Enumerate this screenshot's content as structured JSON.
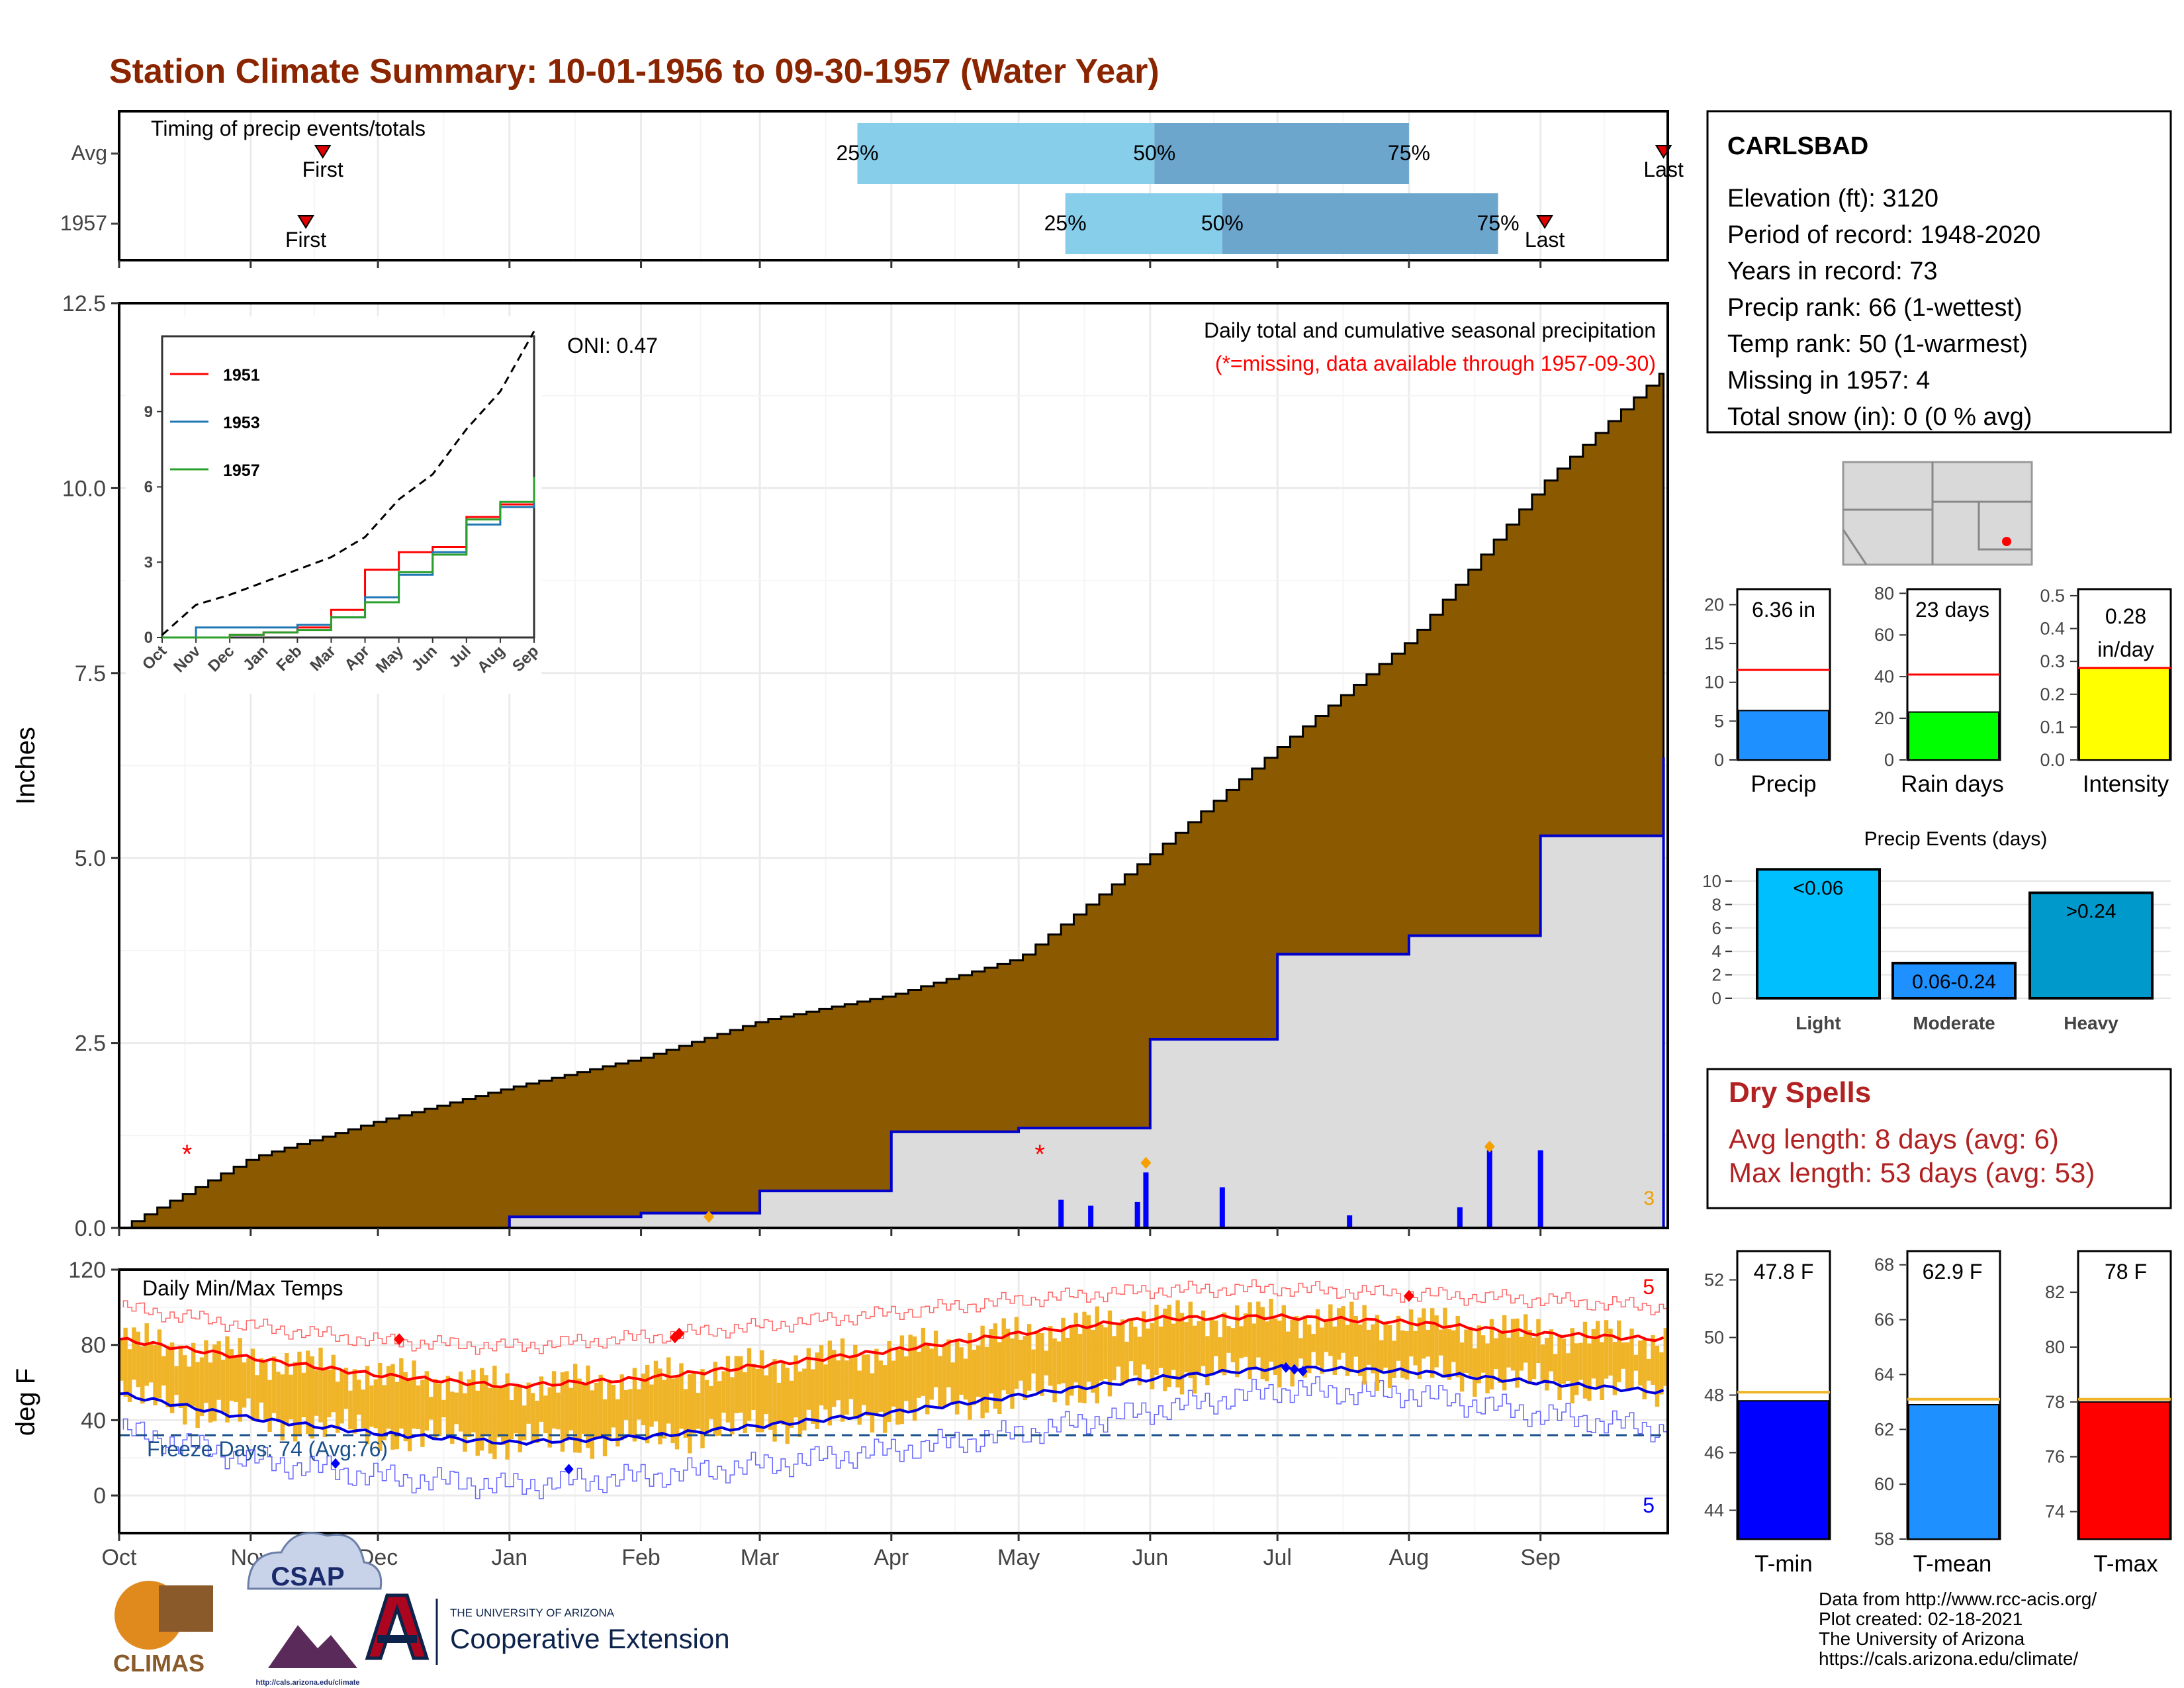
{
  "title": "Station Climate Summary: 10-01-1956 to 09-30-1957 (Water Year)",
  "months": [
    "Oct",
    "Nov",
    "Dec",
    "Jan",
    "Feb",
    "Mar",
    "Apr",
    "May",
    "Jun",
    "Jul",
    "Aug",
    "Sep"
  ],
  "timing": {
    "label": "Timing of precip events/totals",
    "rows": [
      "Avg",
      "1957"
    ],
    "first_label": "First",
    "last_label": "Last",
    "pct_labels": [
      "25%",
      "50%",
      "75%"
    ],
    "avg": {
      "first": "Nov 18",
      "p25": "Mar 24",
      "p50": "Jun 02",
      "p75": "Aug 01",
      "last": "Sep 30"
    },
    "y1957": {
      "first": "Nov 14",
      "p25": "May 12",
      "p50": "Jun 18",
      "p75": "Aug 22",
      "last": "Sep 02"
    }
  },
  "precip_panel": {
    "ylabel": "Inches",
    "caption": "Daily total and cumulative seasonal precipitation",
    "missing_note": "(*=missing, data available through 1957-09-30)",
    "oni": "ONI: 0.47",
    "corner_count": "3",
    "yticks": [
      "0.0",
      "2.5",
      "5.0",
      "7.5",
      "10.0",
      "12.5"
    ]
  },
  "inset": {
    "legend": [
      "1951",
      "1953",
      "1957"
    ],
    "yticks": [
      "0",
      "3",
      "6",
      "9"
    ]
  },
  "temp_panel": {
    "ylabel": "deg F",
    "caption": "Daily Min/Max Temps",
    "freeze": "Freeze Days: 74 (Avg:76)",
    "count_max": "5",
    "count_min": "5",
    "yticks": [
      "0",
      "40",
      "80",
      "120"
    ]
  },
  "station": {
    "name": "CARLSBAD",
    "lines": [
      "Elevation (ft): 3120",
      "Period of record: 1948-2020",
      "Years in record: 73",
      "Precip rank: 66 (1-wettest)",
      "Temp rank: 50 (1-warmest)",
      "Missing in 1957: 4",
      "Total snow (in): 0 (0 % avg)"
    ]
  },
  "mini_precip": {
    "labels": [
      "Precip",
      "Rain days",
      "Intensity"
    ],
    "values": [
      "6.36 in",
      "23 days",
      "0.28"
    ],
    "value_units": [
      "",
      "",
      "in/day"
    ],
    "yticks": [
      [
        "0",
        "5",
        "10",
        "15",
        "20"
      ],
      [
        "0",
        "20",
        "40",
        "60",
        "80"
      ],
      [
        "0.0",
        "0.1",
        "0.2",
        "0.3",
        "0.4",
        "0.5"
      ]
    ]
  },
  "events": {
    "title": "Precip Events (days)",
    "categories": [
      "Light",
      "Moderate",
      "Heavy"
    ],
    "bar_labels": [
      "<0.06",
      "0.06-0.24",
      ">0.24"
    ],
    "yticks": [
      "0",
      "2",
      "4",
      "6",
      "8",
      "10"
    ]
  },
  "dry_spells": {
    "title": "Dry Spells",
    "avg_length": "Avg length: 8 days (avg: 6)",
    "max_length": "Max length: 53 days (avg: 53)"
  },
  "mini_temp": {
    "labels": [
      "T-min",
      "T-mean",
      "T-max"
    ],
    "values": [
      "47.8 F",
      "62.9 F",
      "78 F"
    ],
    "yticks": [
      [
        "44",
        "46",
        "48",
        "50",
        "52"
      ],
      [
        "58",
        "60",
        "62",
        "64",
        "66",
        "68"
      ],
      [
        "74",
        "76",
        "78",
        "80",
        "82"
      ]
    ]
  },
  "footer": {
    "lines": [
      "Data from http://www.rcc-acis.org/",
      "Plot created: 02-18-2021",
      "The University of Arizona",
      "https://cals.arizona.edu/climate/"
    ],
    "logo_climas": "CLIMAS",
    "logo_csap": "CSAP",
    "logo_csap_url": "http://cals.arizona.edu/climate",
    "ua_small": "THE UNIVERSITY OF ARIZONA",
    "ua_big": "Cooperative Extension"
  },
  "colors": {
    "title": "#8B2500",
    "brown": "#8B5A00",
    "light_blue": "#87CEEB",
    "mid_blue": "#6CA6CD",
    "gold": "#F0B429",
    "red": "#FF0000",
    "blue": "#0000FF"
  },
  "chart_data": [
    {
      "type": "area",
      "title": "Daily total and cumulative seasonal precipitation",
      "ylabel": "Inches",
      "ylim": [
        0,
        12.5
      ],
      "x": [
        "Oct",
        "Nov",
        "Dec",
        "Jan",
        "Feb",
        "Mar",
        "Apr",
        "May",
        "Jun",
        "Jul",
        "Aug",
        "Sep",
        "Sep 30"
      ],
      "series": [
        {
          "name": "avg cumulative",
          "values": [
            0.0,
            0.95,
            1.45,
            1.9,
            2.3,
            2.8,
            3.15,
            3.65,
            5.05,
            6.5,
            7.95,
            10.05,
            11.6
          ]
        },
        {
          "name": "1957 cumulative",
          "values": [
            0.0,
            0.0,
            0.0,
            0.15,
            0.2,
            0.5,
            1.3,
            1.35,
            2.55,
            3.7,
            3.95,
            5.3,
            6.36
          ]
        }
      ],
      "daily_bars": [
        {
          "x": "May 11",
          "value": 0.38
        },
        {
          "x": "May 18",
          "value": 0.3
        },
        {
          "x": "May 29",
          "value": 0.35
        },
        {
          "x": "May 31",
          "value": 0.75
        },
        {
          "x": "Jun 18",
          "value": 0.55
        },
        {
          "x": "Jul 18",
          "value": 0.17
        },
        {
          "x": "Aug 13",
          "value": 0.28
        },
        {
          "x": "Aug 20",
          "value": 1.05
        },
        {
          "x": "Sep 01",
          "value": 1.05
        }
      ]
    },
    {
      "type": "line",
      "title": "Daily Min/Max Temps",
      "ylabel": "deg F",
      "ylim": [
        -20,
        120
      ],
      "x": [
        "Oct",
        "Nov",
        "Dec",
        "Jan",
        "Feb",
        "Mar",
        "Apr",
        "May",
        "Jun",
        "Jul",
        "Aug",
        "Sep",
        "Sep 30"
      ],
      "series": [
        {
          "name": "avg max",
          "values": [
            83,
            73,
            64,
            58,
            62,
            69,
            77,
            86,
            94,
            95,
            92,
            86,
            83
          ]
        },
        {
          "name": "avg min",
          "values": [
            54,
            41,
            33,
            28,
            31,
            37,
            44,
            53,
            62,
            68,
            66,
            60,
            55
          ]
        },
        {
          "name": "record high",
          "values": [
            100,
            90,
            82,
            79,
            84,
            90,
            97,
            104,
            109,
            110,
            107,
            104,
            100
          ]
        },
        {
          "name": "record low",
          "values": [
            35,
            19,
            10,
            5,
            10,
            16,
            24,
            33,
            45,
            56,
            54,
            43,
            35
          ]
        }
      ],
      "hlines": [
        {
          "value": 32
        }
      ]
    },
    {
      "type": "line",
      "x": [
        "Oct",
        "Nov",
        "Dec",
        "Jan",
        "Feb",
        "Mar",
        "Apr",
        "May",
        "Jun",
        "Jul",
        "Aug",
        "Sep"
      ],
      "ylim": [
        0,
        12
      ],
      "yticks": [
        0,
        3,
        6,
        9
      ],
      "series": [
        {
          "name": "avg",
          "values": [
            0.1,
            1.3,
            1.7,
            2.2,
            2.7,
            3.2,
            4.0,
            5.5,
            6.5,
            8.3,
            9.8,
            12.2
          ]
        },
        {
          "name": "1951",
          "values": [
            0.0,
            0.0,
            0.1,
            0.2,
            0.4,
            1.1,
            2.7,
            3.4,
            3.6,
            4.8,
            5.3,
            6.0
          ]
        },
        {
          "name": "1953",
          "values": [
            0.0,
            0.4,
            0.4,
            0.4,
            0.5,
            0.8,
            1.6,
            2.5,
            3.4,
            4.5,
            5.2,
            5.7
          ]
        },
        {
          "name": "1957",
          "values": [
            0.0,
            0.0,
            0.1,
            0.2,
            0.3,
            0.8,
            1.4,
            2.6,
            3.3,
            4.7,
            5.4,
            6.4
          ]
        }
      ]
    },
    {
      "type": "bar",
      "categories": [
        "Precip",
        "Rain days",
        "Intensity"
      ],
      "values": [
        6.36,
        23,
        0.28
      ],
      "averages": [
        11.6,
        41,
        0.28
      ],
      "ylims": [
        [
          0,
          22
        ],
        [
          0,
          82
        ],
        [
          0,
          0.52
        ]
      ]
    },
    {
      "type": "bar",
      "title": "Precip Events (days)",
      "categories": [
        "Light",
        "Moderate",
        "Heavy"
      ],
      "values": [
        11,
        3,
        9
      ],
      "ylim": [
        0,
        11.3
      ]
    },
    {
      "type": "bar",
      "categories": [
        "T-min",
        "T-mean",
        "T-max"
      ],
      "values": [
        47.8,
        62.9,
        78.0
      ],
      "averages": [
        48.1,
        63.1,
        78.1
      ],
      "ylims": [
        [
          43,
          53
        ],
        [
          58,
          68.5
        ],
        [
          73,
          83.5
        ]
      ]
    }
  ]
}
